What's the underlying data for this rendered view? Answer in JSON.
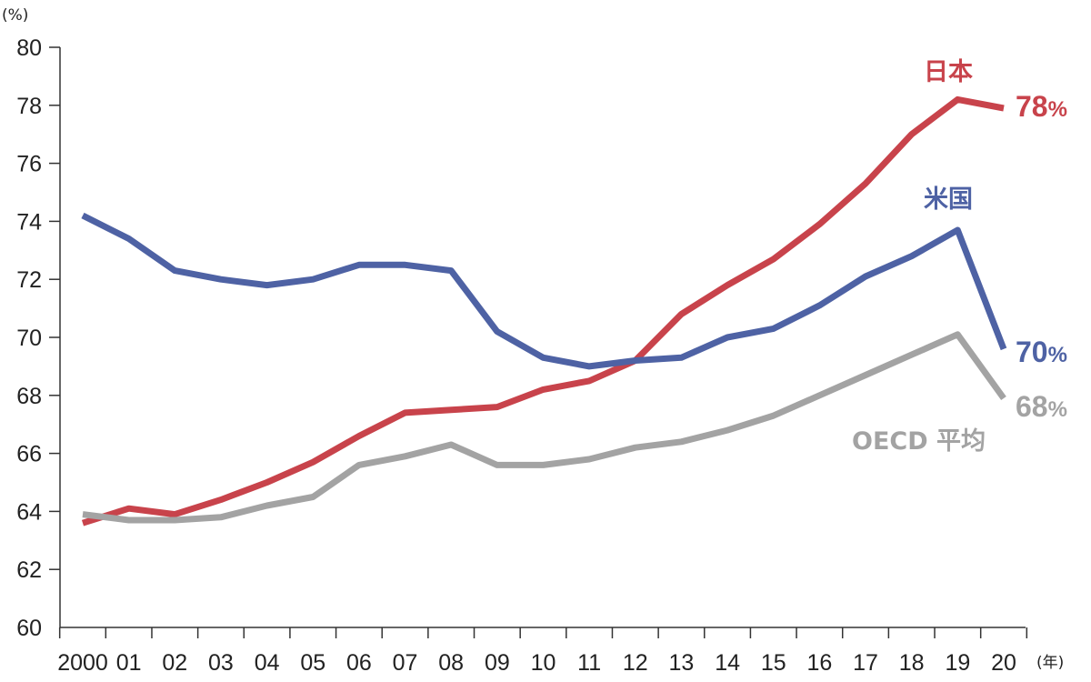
{
  "chart_data": {
    "type": "line",
    "y_unit": "(%)",
    "x_unit": "(年)",
    "ylim": [
      60,
      80
    ],
    "y_ticks": [
      60,
      62,
      64,
      66,
      68,
      70,
      72,
      74,
      76,
      78,
      80
    ],
    "categories": [
      "2000",
      "01",
      "02",
      "03",
      "04",
      "05",
      "06",
      "07",
      "08",
      "09",
      "10",
      "11",
      "12",
      "13",
      "14",
      "15",
      "16",
      "17",
      "18",
      "19",
      "20"
    ],
    "grid": false,
    "series": [
      {
        "name": "日本",
        "color": "#c8434b",
        "end_value": "78",
        "end_unit": "%",
        "values": [
          63.6,
          64.1,
          63.9,
          64.4,
          65.0,
          65.7,
          66.6,
          67.4,
          67.5,
          67.6,
          68.2,
          68.5,
          69.2,
          70.8,
          71.8,
          72.7,
          73.9,
          75.3,
          77.0,
          78.2,
          77.9
        ]
      },
      {
        "name": "米国",
        "color": "#4e62a4",
        "end_value": "70",
        "end_unit": "%",
        "values": [
          74.2,
          73.4,
          72.3,
          72.0,
          71.8,
          72.0,
          72.5,
          72.5,
          72.3,
          70.2,
          69.3,
          69.0,
          69.2,
          69.3,
          70.0,
          70.3,
          71.1,
          72.1,
          72.8,
          73.7,
          69.6
        ]
      },
      {
        "name": "OECD 平均",
        "color": "#a3a3a3",
        "end_value": "68",
        "end_unit": "%",
        "values": [
          63.9,
          63.7,
          63.7,
          63.8,
          64.2,
          64.5,
          65.6,
          65.9,
          66.3,
          65.6,
          65.6,
          65.8,
          66.2,
          66.4,
          66.8,
          67.3,
          68.0,
          68.7,
          69.4,
          70.1,
          67.9
        ]
      }
    ]
  }
}
